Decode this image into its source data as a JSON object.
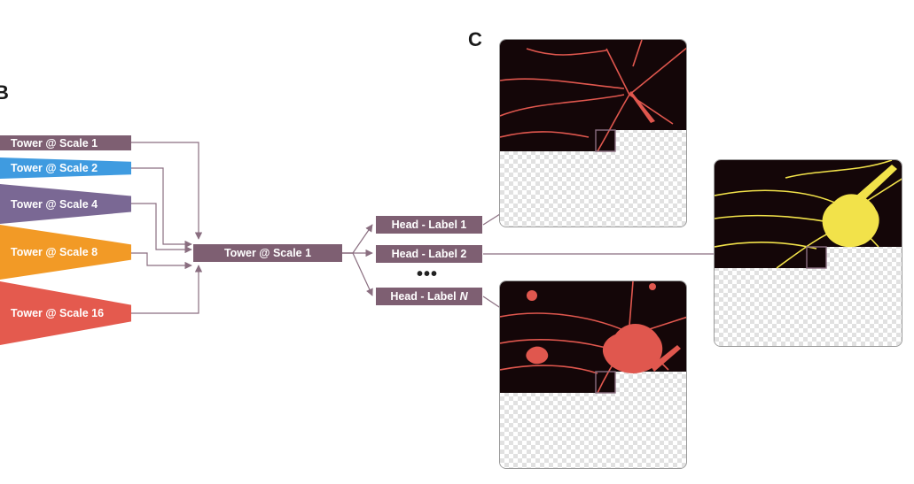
{
  "panel_labels": {
    "b": "B",
    "c": "C"
  },
  "towers": [
    {
      "label": "Tower @ Scale 1",
      "color": "#7e5f72"
    },
    {
      "label": "Tower @ Scale 2",
      "color": "#3f9be0"
    },
    {
      "label": "Tower @ Scale 4",
      "color": "#7a6894"
    },
    {
      "label": "Tower @ Scale 8",
      "color": "#f29a26"
    },
    {
      "label": "Tower @ Scale 16",
      "color": "#e45a4e"
    }
  ],
  "merged_tower": {
    "label": "Tower @ Scale 1",
    "color": "#7e5f72"
  },
  "heads": [
    {
      "label": "Head - Label 1",
      "color": "#7e5f72"
    },
    {
      "label": "Head - Label 2",
      "color": "#7e5f72"
    },
    {
      "label": "Head - Label",
      "label_suffix": "N",
      "color": "#7e5f72"
    }
  ],
  "ellipsis": "•••",
  "colors": {
    "arrow": "#8a6e80",
    "mask_background": "#140608",
    "label1_lines": "#e0574e",
    "label2_lines": "#f2e24a",
    "labelN_lines": "#e0574e"
  }
}
